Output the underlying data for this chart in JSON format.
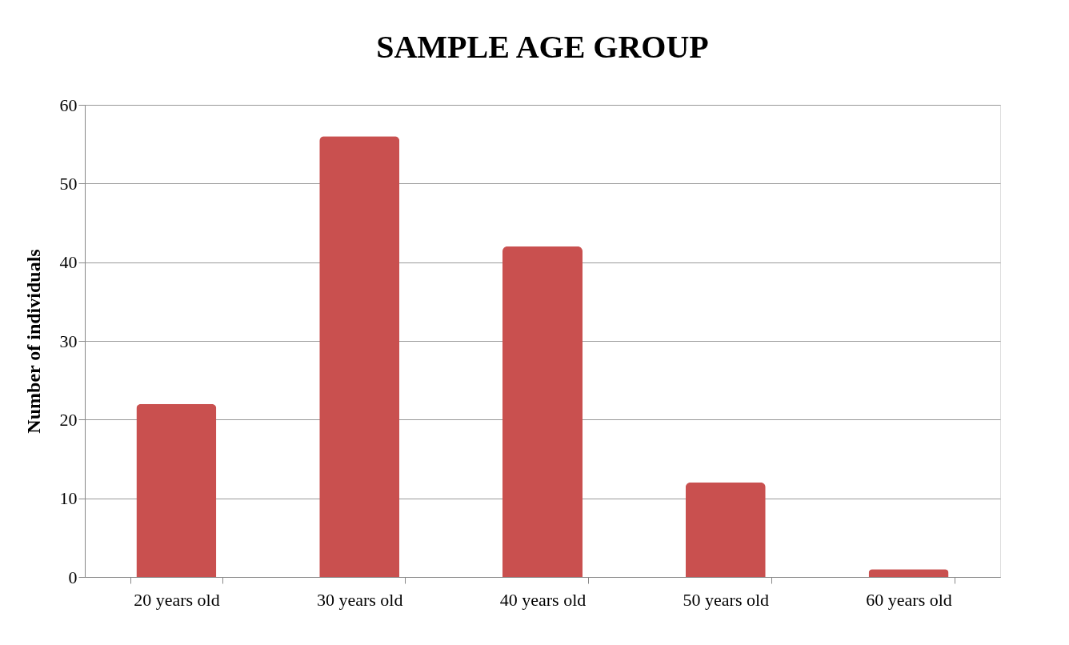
{
  "chart_data": {
    "type": "bar",
    "title": "SAMPLE AGE GROUP",
    "ylabel": "Number of individuals",
    "categories": [
      "20 years old",
      "30 years old",
      "40 years old",
      "50 years old",
      "60 years old"
    ],
    "values": [
      22,
      56,
      42,
      12,
      1
    ],
    "color": "#c9504f",
    "ylim": [
      0,
      60
    ],
    "yticks": [
      0,
      10,
      20,
      30,
      40,
      50,
      60
    ],
    "grid": "y"
  }
}
